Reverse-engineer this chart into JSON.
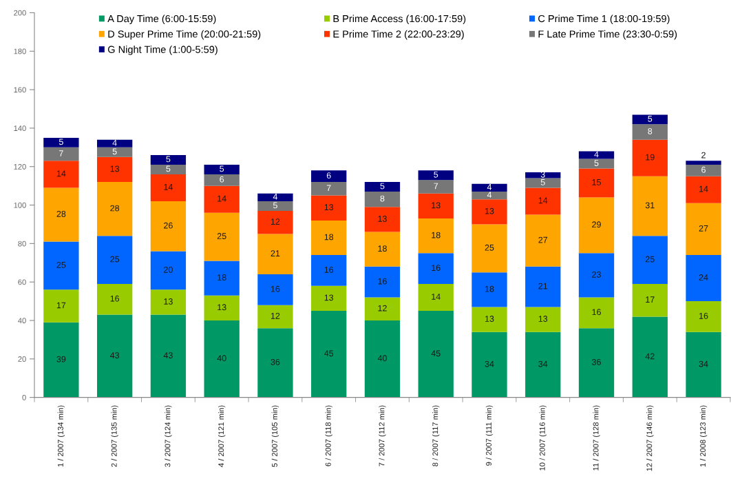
{
  "chart_data": {
    "type": "bar",
    "stacked": true,
    "categories": [
      "1 / 2007 (134 min)",
      "2 / 2007 (135 min)",
      "3 / 2007 (124 min)",
      "4 / 2007 (121 min)",
      "5 / 2007 (105 min)",
      "6 / 2007 (118 min)",
      "7 / 2007 (112 min)",
      "8 / 2007 (117 min)",
      "9 / 2007 (111 min)",
      "10 / 2007 (116 min)",
      "11 / 2007 (128 min)",
      "12 / 2007 (146 min)",
      "1 / 2008 (123 min)"
    ],
    "series": [
      {
        "name": "A Day Time (6:00-15:59)",
        "color": "#009966",
        "values": [
          39,
          43,
          43,
          40,
          36,
          45,
          40,
          45,
          34,
          34,
          36,
          42,
          34
        ]
      },
      {
        "name": "B Prime Access (16:00-17:59)",
        "color": "#99cc00",
        "values": [
          17,
          16,
          13,
          13,
          12,
          13,
          12,
          14,
          13,
          13,
          16,
          17,
          16
        ]
      },
      {
        "name": "C Prime Time 1 (18:00-19:59)",
        "color": "#0066ff",
        "values": [
          25,
          25,
          20,
          18,
          16,
          16,
          16,
          16,
          18,
          21,
          23,
          25,
          24
        ]
      },
      {
        "name": "D Super Prime Time (20:00-21:59)",
        "color": "#ffa500",
        "values": [
          28,
          28,
          26,
          25,
          21,
          18,
          18,
          18,
          25,
          27,
          29,
          31,
          27
        ]
      },
      {
        "name": "E Prime Time 2 (22:00-23:29)",
        "color": "#ff3300",
        "values": [
          14,
          13,
          14,
          14,
          12,
          13,
          13,
          13,
          13,
          14,
          15,
          19,
          14
        ]
      },
      {
        "name": "F Late Prime Time (23:30-0:59)",
        "color": "#777777",
        "values": [
          7,
          5,
          5,
          6,
          5,
          7,
          8,
          7,
          4,
          5,
          5,
          8,
          6
        ]
      },
      {
        "name": "G Night Time (1:00-5:59)",
        "color": "#000080",
        "values": [
          5,
          4,
          5,
          5,
          4,
          6,
          5,
          5,
          4,
          3,
          4,
          5,
          2
        ]
      }
    ],
    "ylim": [
      0,
      200
    ],
    "yticks": [
      0,
      20,
      40,
      60,
      80,
      100,
      120,
      140,
      160,
      180,
      200
    ],
    "grid": false,
    "legend": "top",
    "data_labels": true
  }
}
